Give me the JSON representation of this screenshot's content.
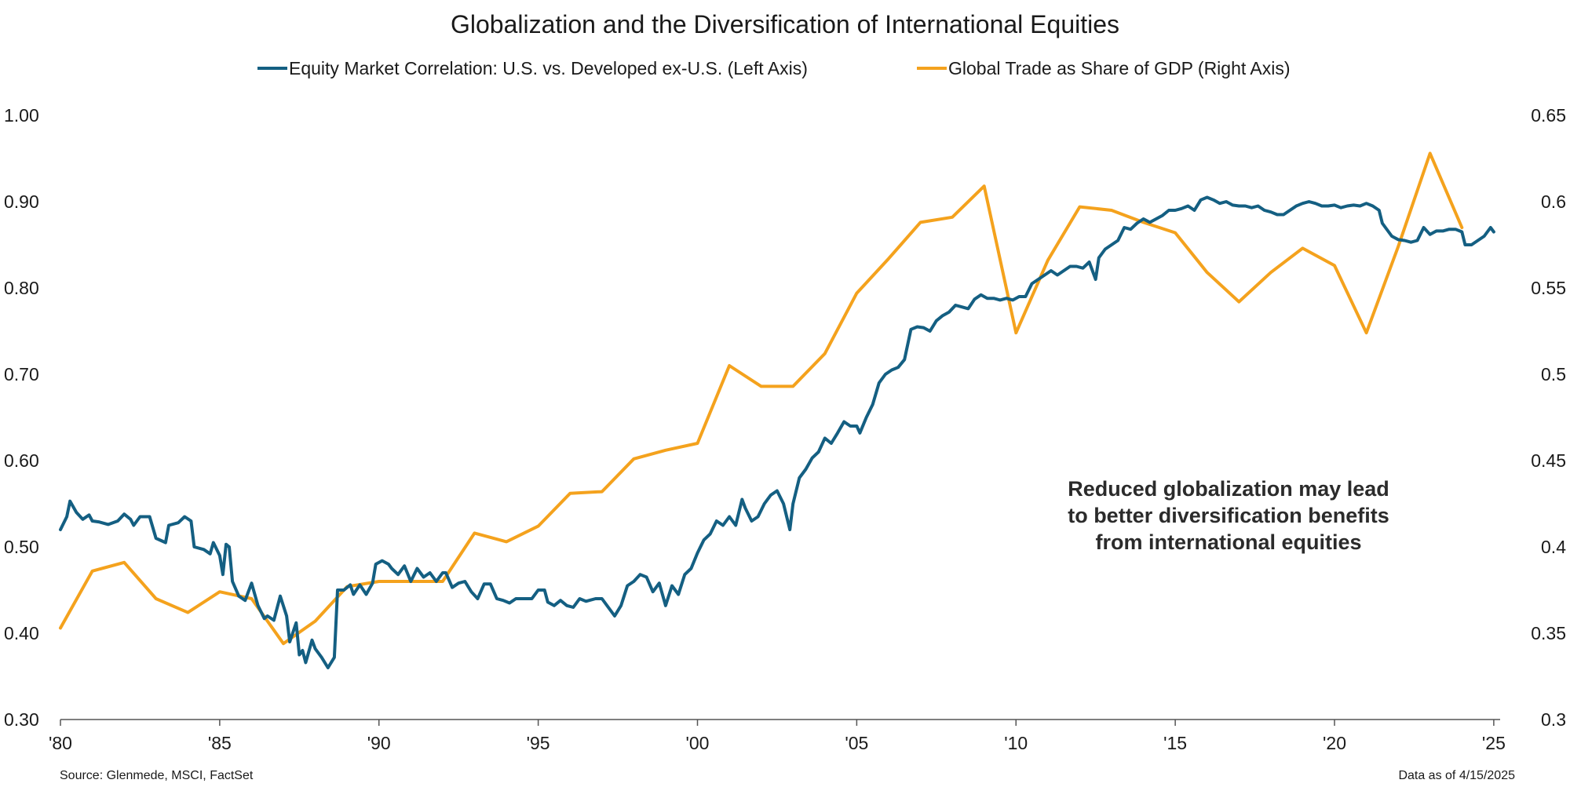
{
  "chart_data": {
    "type": "line",
    "title": "Globalization and the Diversification of International Equities",
    "x_tick_labels": [
      "'80",
      "'85",
      "'90",
      "'95",
      "'00",
      "'05",
      "'10",
      "'15",
      "'20",
      "'25"
    ],
    "x_tick_years": [
      1980,
      1985,
      1990,
      1995,
      2000,
      2005,
      2010,
      2015,
      2020,
      2025
    ],
    "xlim": [
      1980,
      2025.2
    ],
    "left_axis": {
      "ylim": [
        0.3,
        1.0
      ],
      "tick_labels": [
        "1.00",
        "0.90",
        "0.80",
        "0.70",
        "0.60",
        "0.50",
        "0.40",
        "0.30"
      ],
      "tick_values": [
        1.0,
        0.9,
        0.8,
        0.7,
        0.6,
        0.5,
        0.4,
        0.3
      ]
    },
    "right_axis": {
      "ylim": [
        0.3,
        0.65
      ],
      "tick_labels": [
        "0.65",
        "0.6",
        "0.55",
        "0.5",
        "0.45",
        "0.4",
        "0.35",
        "0.3"
      ],
      "tick_values": [
        0.65,
        0.6,
        0.55,
        0.5,
        0.45,
        0.4,
        0.35,
        0.3
      ]
    },
    "series": [
      {
        "name": "Equity Market Correlation: U.S. vs. Developed ex-U.S. (Left Axis)",
        "axis": "left",
        "color": "#145f82",
        "points": [
          [
            1980.0,
            0.52
          ],
          [
            1980.2,
            0.535
          ],
          [
            1980.3,
            0.553
          ],
          [
            1980.5,
            0.54
          ],
          [
            1980.7,
            0.532
          ],
          [
            1980.9,
            0.537
          ],
          [
            1981.0,
            0.53
          ],
          [
            1981.2,
            0.529
          ],
          [
            1981.5,
            0.526
          ],
          [
            1981.8,
            0.53
          ],
          [
            1982.0,
            0.538
          ],
          [
            1982.2,
            0.532
          ],
          [
            1982.3,
            0.525
          ],
          [
            1982.5,
            0.535
          ],
          [
            1982.8,
            0.535
          ],
          [
            1983.0,
            0.51
          ],
          [
            1983.3,
            0.505
          ],
          [
            1983.4,
            0.525
          ],
          [
            1983.7,
            0.528
          ],
          [
            1983.9,
            0.535
          ],
          [
            1984.1,
            0.53
          ],
          [
            1984.2,
            0.5
          ],
          [
            1984.5,
            0.497
          ],
          [
            1984.7,
            0.492
          ],
          [
            1984.8,
            0.505
          ],
          [
            1985.0,
            0.49
          ],
          [
            1985.1,
            0.468
          ],
          [
            1985.2,
            0.503
          ],
          [
            1985.3,
            0.5
          ],
          [
            1985.4,
            0.46
          ],
          [
            1985.6,
            0.443
          ],
          [
            1985.8,
            0.438
          ],
          [
            1986.0,
            0.458
          ],
          [
            1986.2,
            0.432
          ],
          [
            1986.4,
            0.417
          ],
          [
            1986.5,
            0.42
          ],
          [
            1986.7,
            0.415
          ],
          [
            1986.9,
            0.443
          ],
          [
            1987.1,
            0.42
          ],
          [
            1987.2,
            0.39
          ],
          [
            1987.4,
            0.412
          ],
          [
            1987.5,
            0.375
          ],
          [
            1987.6,
            0.38
          ],
          [
            1987.7,
            0.366
          ],
          [
            1987.9,
            0.392
          ],
          [
            1988.0,
            0.382
          ],
          [
            1988.2,
            0.372
          ],
          [
            1988.4,
            0.36
          ],
          [
            1988.6,
            0.372
          ],
          [
            1988.7,
            0.45
          ],
          [
            1988.9,
            0.45
          ],
          [
            1989.1,
            0.456
          ],
          [
            1989.2,
            0.445
          ],
          [
            1989.4,
            0.456
          ],
          [
            1989.6,
            0.445
          ],
          [
            1989.8,
            0.458
          ],
          [
            1989.9,
            0.48
          ],
          [
            1990.1,
            0.484
          ],
          [
            1990.3,
            0.48
          ],
          [
            1990.4,
            0.475
          ],
          [
            1990.6,
            0.468
          ],
          [
            1990.8,
            0.478
          ],
          [
            1991.0,
            0.46
          ],
          [
            1991.2,
            0.475
          ],
          [
            1991.4,
            0.465
          ],
          [
            1991.6,
            0.47
          ],
          [
            1991.8,
            0.46
          ],
          [
            1992.0,
            0.47
          ],
          [
            1992.1,
            0.47
          ],
          [
            1992.3,
            0.453
          ],
          [
            1992.5,
            0.458
          ],
          [
            1992.7,
            0.46
          ],
          [
            1992.9,
            0.448
          ],
          [
            1993.1,
            0.44
          ],
          [
            1993.3,
            0.457
          ],
          [
            1993.5,
            0.457
          ],
          [
            1993.7,
            0.44
          ],
          [
            1993.9,
            0.438
          ],
          [
            1994.1,
            0.435
          ],
          [
            1994.3,
            0.44
          ],
          [
            1994.5,
            0.44
          ],
          [
            1994.8,
            0.44
          ],
          [
            1995.0,
            0.45
          ],
          [
            1995.2,
            0.45
          ],
          [
            1995.3,
            0.436
          ],
          [
            1995.5,
            0.432
          ],
          [
            1995.7,
            0.438
          ],
          [
            1995.9,
            0.432
          ],
          [
            1996.1,
            0.43
          ],
          [
            1996.3,
            0.44
          ],
          [
            1996.5,
            0.437
          ],
          [
            1996.8,
            0.44
          ],
          [
            1997.0,
            0.44
          ],
          [
            1997.2,
            0.43
          ],
          [
            1997.4,
            0.42
          ],
          [
            1997.6,
            0.432
          ],
          [
            1997.8,
            0.455
          ],
          [
            1998.0,
            0.46
          ],
          [
            1998.2,
            0.468
          ],
          [
            1998.4,
            0.465
          ],
          [
            1998.6,
            0.448
          ],
          [
            1998.8,
            0.458
          ],
          [
            1999.0,
            0.432
          ],
          [
            1999.2,
            0.455
          ],
          [
            1999.4,
            0.445
          ],
          [
            1999.6,
            0.468
          ],
          [
            1999.8,
            0.475
          ],
          [
            2000.0,
            0.493
          ],
          [
            2000.2,
            0.508
          ],
          [
            2000.4,
            0.515
          ],
          [
            2000.6,
            0.53
          ],
          [
            2000.8,
            0.525
          ],
          [
            2001.0,
            0.535
          ],
          [
            2001.2,
            0.525
          ],
          [
            2001.4,
            0.555
          ],
          [
            2001.5,
            0.545
          ],
          [
            2001.7,
            0.53
          ],
          [
            2001.9,
            0.535
          ],
          [
            2002.1,
            0.55
          ],
          [
            2002.3,
            0.56
          ],
          [
            2002.5,
            0.565
          ],
          [
            2002.7,
            0.55
          ],
          [
            2002.9,
            0.52
          ],
          [
            2003.0,
            0.55
          ],
          [
            2003.2,
            0.58
          ],
          [
            2003.4,
            0.59
          ],
          [
            2003.6,
            0.603
          ],
          [
            2003.8,
            0.61
          ],
          [
            2004.0,
            0.626
          ],
          [
            2004.2,
            0.62
          ],
          [
            2004.4,
            0.632
          ],
          [
            2004.6,
            0.645
          ],
          [
            2004.8,
            0.64
          ],
          [
            2005.0,
            0.64
          ],
          [
            2005.1,
            0.632
          ],
          [
            2005.3,
            0.65
          ],
          [
            2005.5,
            0.665
          ],
          [
            2005.7,
            0.69
          ],
          [
            2005.9,
            0.7
          ],
          [
            2006.1,
            0.705
          ],
          [
            2006.3,
            0.708
          ],
          [
            2006.5,
            0.717
          ],
          [
            2006.7,
            0.752
          ],
          [
            2006.9,
            0.755
          ],
          [
            2007.1,
            0.754
          ],
          [
            2007.3,
            0.75
          ],
          [
            2007.5,
            0.762
          ],
          [
            2007.7,
            0.768
          ],
          [
            2007.9,
            0.772
          ],
          [
            2008.1,
            0.78
          ],
          [
            2008.3,
            0.778
          ],
          [
            2008.5,
            0.776
          ],
          [
            2008.7,
            0.787
          ],
          [
            2008.9,
            0.792
          ],
          [
            2009.1,
            0.788
          ],
          [
            2009.3,
            0.788
          ],
          [
            2009.5,
            0.786
          ],
          [
            2009.7,
            0.788
          ],
          [
            2009.9,
            0.786
          ],
          [
            2010.1,
            0.79
          ],
          [
            2010.3,
            0.79
          ],
          [
            2010.5,
            0.805
          ],
          [
            2010.7,
            0.81
          ],
          [
            2010.9,
            0.815
          ],
          [
            2011.1,
            0.82
          ],
          [
            2011.3,
            0.815
          ],
          [
            2011.5,
            0.82
          ],
          [
            2011.7,
            0.825
          ],
          [
            2011.9,
            0.825
          ],
          [
            2012.1,
            0.823
          ],
          [
            2012.3,
            0.83
          ],
          [
            2012.5,
            0.81
          ],
          [
            2012.6,
            0.835
          ],
          [
            2012.8,
            0.845
          ],
          [
            2013.0,
            0.85
          ],
          [
            2013.2,
            0.855
          ],
          [
            2013.4,
            0.87
          ],
          [
            2013.6,
            0.868
          ],
          [
            2013.8,
            0.875
          ],
          [
            2014.0,
            0.88
          ],
          [
            2014.2,
            0.876
          ],
          [
            2014.4,
            0.88
          ],
          [
            2014.6,
            0.884
          ],
          [
            2014.8,
            0.89
          ],
          [
            2015.0,
            0.89
          ],
          [
            2015.2,
            0.892
          ],
          [
            2015.4,
            0.895
          ],
          [
            2015.6,
            0.89
          ],
          [
            2015.8,
            0.902
          ],
          [
            2016.0,
            0.905
          ],
          [
            2016.2,
            0.902
          ],
          [
            2016.4,
            0.898
          ],
          [
            2016.6,
            0.9
          ],
          [
            2016.8,
            0.896
          ],
          [
            2017.0,
            0.895
          ],
          [
            2017.2,
            0.895
          ],
          [
            2017.4,
            0.893
          ],
          [
            2017.6,
            0.895
          ],
          [
            2017.8,
            0.89
          ],
          [
            2018.0,
            0.888
          ],
          [
            2018.2,
            0.885
          ],
          [
            2018.4,
            0.885
          ],
          [
            2018.6,
            0.89
          ],
          [
            2018.8,
            0.895
          ],
          [
            2019.0,
            0.898
          ],
          [
            2019.2,
            0.9
          ],
          [
            2019.4,
            0.898
          ],
          [
            2019.6,
            0.895
          ],
          [
            2019.8,
            0.895
          ],
          [
            2020.0,
            0.896
          ],
          [
            2020.2,
            0.893
          ],
          [
            2020.4,
            0.895
          ],
          [
            2020.6,
            0.896
          ],
          [
            2020.8,
            0.895
          ],
          [
            2021.0,
            0.898
          ],
          [
            2021.2,
            0.895
          ],
          [
            2021.4,
            0.89
          ],
          [
            2021.5,
            0.875
          ],
          [
            2021.6,
            0.87
          ],
          [
            2021.8,
            0.86
          ],
          [
            2022.0,
            0.856
          ],
          [
            2022.2,
            0.855
          ],
          [
            2022.4,
            0.853
          ],
          [
            2022.6,
            0.855
          ],
          [
            2022.8,
            0.87
          ],
          [
            2023.0,
            0.862
          ],
          [
            2023.2,
            0.866
          ],
          [
            2023.4,
            0.866
          ],
          [
            2023.6,
            0.868
          ],
          [
            2023.8,
            0.868
          ],
          [
            2024.0,
            0.865
          ],
          [
            2024.1,
            0.85
          ],
          [
            2024.3,
            0.85
          ],
          [
            2024.5,
            0.855
          ],
          [
            2024.7,
            0.86
          ],
          [
            2024.9,
            0.87
          ],
          [
            2025.0,
            0.865
          ]
        ]
      },
      {
        "name": "Global Trade as Share of GDP (Right Axis)",
        "axis": "right",
        "color": "#f4a21d",
        "points": [
          [
            1980,
            0.353
          ],
          [
            1981,
            0.386
          ],
          [
            1982,
            0.391
          ],
          [
            1983,
            0.37
          ],
          [
            1984,
            0.362
          ],
          [
            1985,
            0.374
          ],
          [
            1986,
            0.37
          ],
          [
            1987,
            0.344
          ],
          [
            1988,
            0.357
          ],
          [
            1989,
            0.377
          ],
          [
            1990,
            0.38
          ],
          [
            1991,
            0.38
          ],
          [
            1992,
            0.38
          ],
          [
            1993,
            0.408
          ],
          [
            1994,
            0.403
          ],
          [
            1995,
            0.412
          ],
          [
            1996,
            0.431
          ],
          [
            1997,
            0.432
          ],
          [
            1998,
            0.451
          ],
          [
            1999,
            0.456
          ],
          [
            2000,
            0.46
          ],
          [
            2001,
            0.505
          ],
          [
            2002,
            0.493
          ],
          [
            2003,
            0.493
          ],
          [
            2004,
            0.512
          ],
          [
            2005,
            0.547
          ],
          [
            2006,
            0.567
          ],
          [
            2007,
            0.588
          ],
          [
            2008,
            0.591
          ],
          [
            2009,
            0.609
          ],
          [
            2010,
            0.524
          ],
          [
            2011,
            0.566
          ],
          [
            2012,
            0.597
          ],
          [
            2013,
            0.595
          ],
          [
            2014,
            0.588
          ],
          [
            2015,
            0.582
          ],
          [
            2016,
            0.559
          ],
          [
            2017,
            0.542
          ],
          [
            2018,
            0.559
          ],
          [
            2019,
            0.573
          ],
          [
            2020,
            0.563
          ],
          [
            2021,
            0.524
          ],
          [
            2022,
            0.574
          ],
          [
            2023,
            0.628
          ],
          [
            2024,
            0.585
          ]
        ]
      }
    ],
    "annotation": [
      "Reduced globalization may lead",
      "to better diversification benefits",
      "from international equities"
    ],
    "grid": false,
    "legend_position": "top-center"
  },
  "footer": {
    "source": "Source: Glenmede, MSCI, FactSet",
    "as_of": "Data as of 4/15/2025"
  }
}
